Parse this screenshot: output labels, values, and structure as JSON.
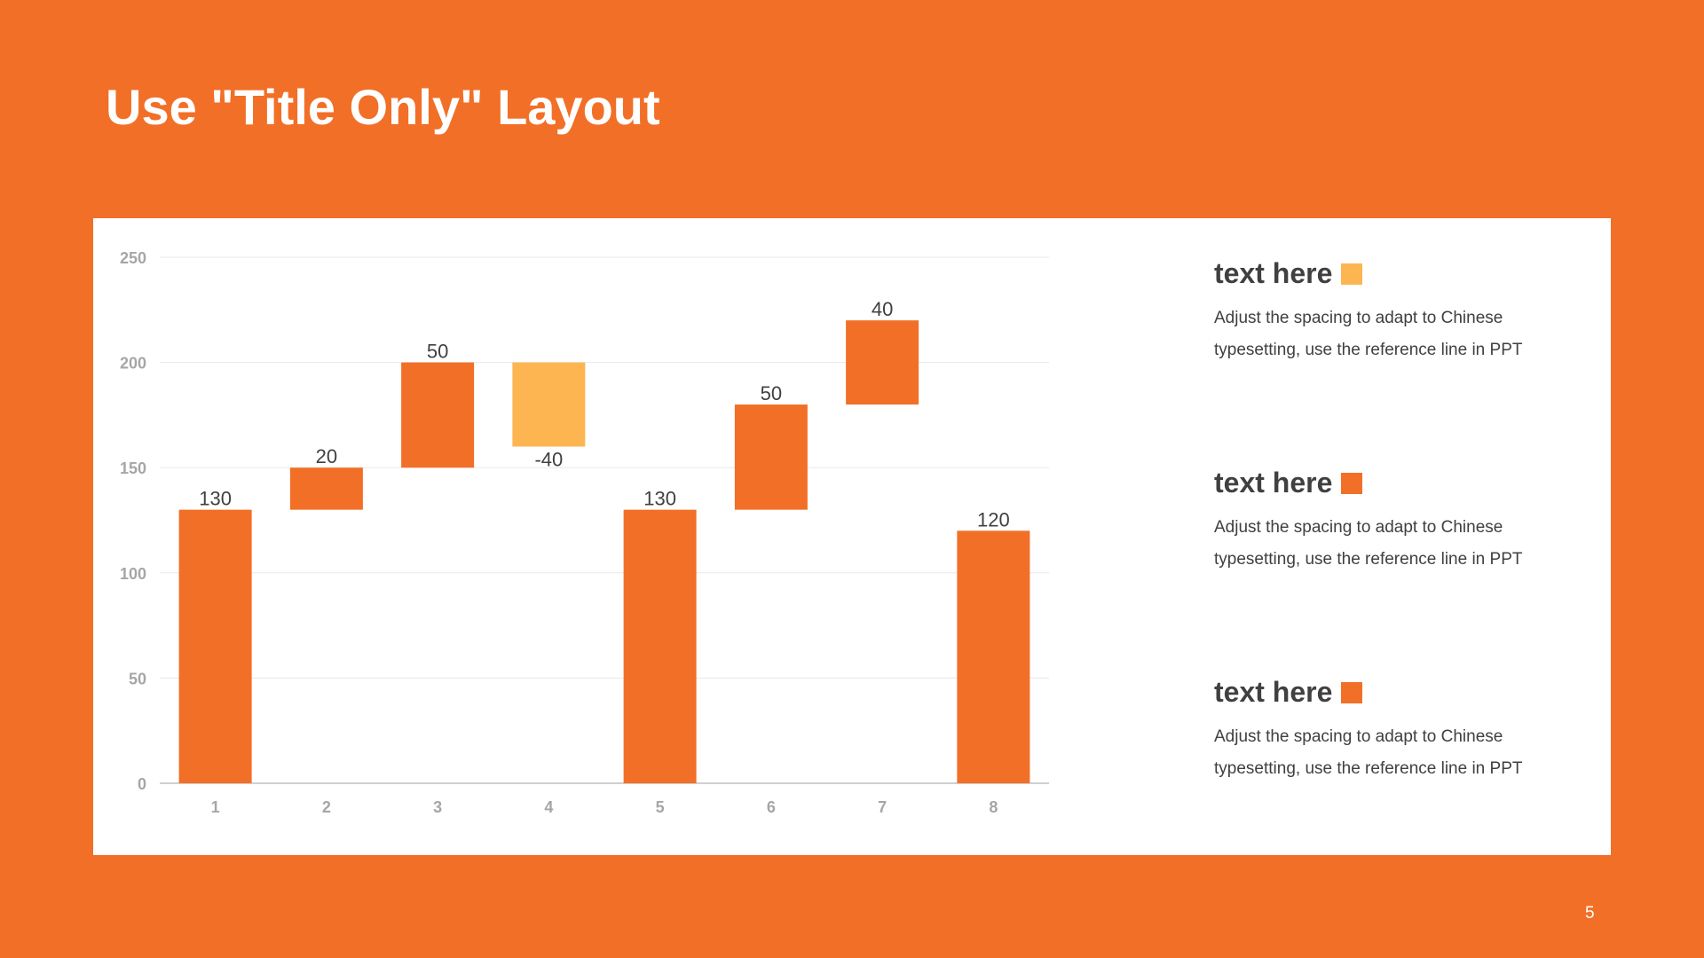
{
  "slide": {
    "title": "Use \"Title Only\" Layout",
    "page_number": "5",
    "background": "#F26F27"
  },
  "colors": {
    "increase": "#F26F27",
    "decrease": "#FDB552",
    "grid": "#E8E8E8",
    "tick": "#A6A6A6",
    "label": "#404040"
  },
  "chart_data": {
    "type": "bar",
    "subtype": "waterfall",
    "title": "",
    "xlabel": "",
    "ylabel": "",
    "categories": [
      "1",
      "2",
      "3",
      "4",
      "5",
      "6",
      "7",
      "8"
    ],
    "values": [
      130,
      20,
      50,
      -40,
      130,
      50,
      40,
      120
    ],
    "data_labels": [
      "130",
      "20",
      "50",
      "-40",
      "130",
      "50",
      "40",
      "120"
    ],
    "bar_ranges": [
      [
        0,
        130
      ],
      [
        130,
        150
      ],
      [
        150,
        200
      ],
      [
        160,
        200
      ],
      [
        0,
        130
      ],
      [
        130,
        180
      ],
      [
        180,
        220
      ],
      [
        0,
        120
      ]
    ],
    "bar_colors": [
      "increase",
      "increase",
      "increase",
      "decrease",
      "increase",
      "increase",
      "increase",
      "increase"
    ],
    "ylim": [
      0,
      250
    ],
    "yticks": [
      0,
      50,
      100,
      150,
      200,
      250
    ],
    "grid": true
  },
  "legend": [
    {
      "title": "text here",
      "color": "#FDB552",
      "desc_line1": "Adjust the spacing to adapt to Chinese",
      "desc_line2": "typesetting, use the reference line in PPT"
    },
    {
      "title": "text here",
      "color": "#F26F27",
      "desc_line1": "Adjust the spacing to adapt to Chinese",
      "desc_line2": "typesetting, use the reference line in PPT"
    },
    {
      "title": "text here",
      "color": "#F26F27",
      "desc_line1": "Adjust the spacing to adapt to Chinese",
      "desc_line2": "typesetting, use the reference line in PPT"
    }
  ]
}
